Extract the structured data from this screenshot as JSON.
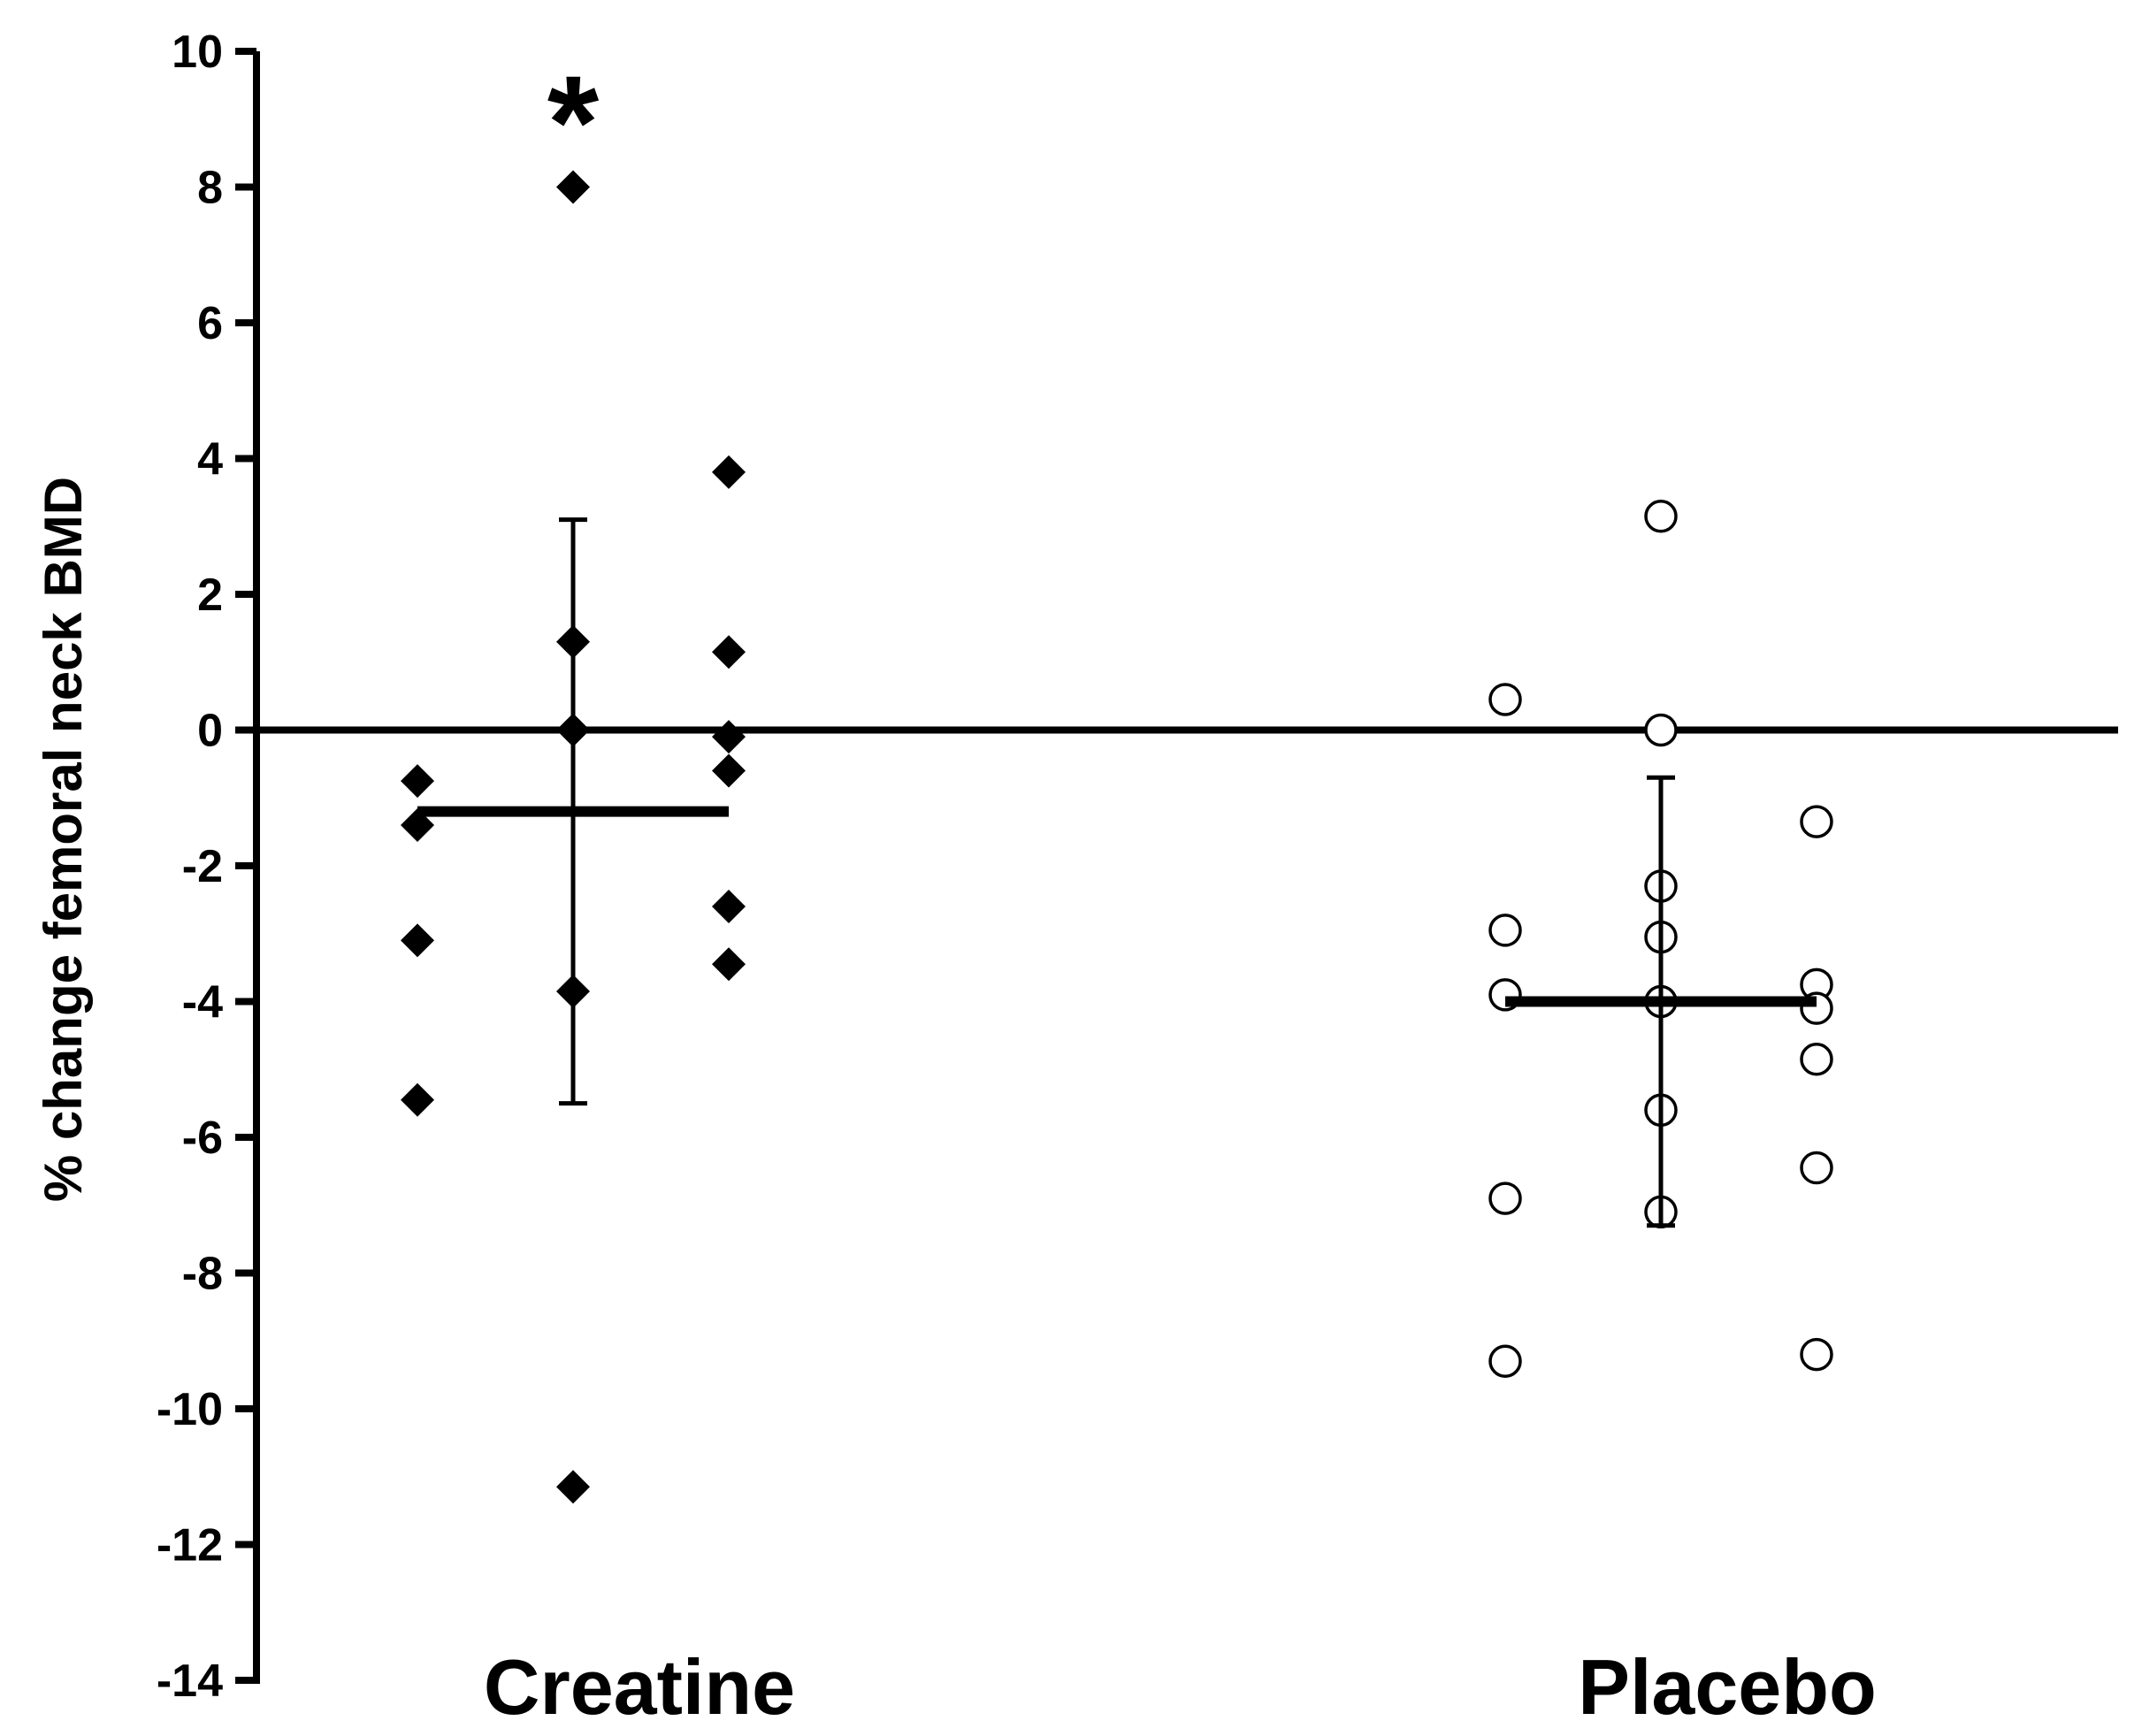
{
  "chart_data": {
    "type": "scatter",
    "title": "",
    "xlabel": "",
    "ylabel": "% change femoral neck BMD",
    "ylim": [
      -14,
      10
    ],
    "yticks": [
      10,
      8,
      6,
      4,
      2,
      0,
      -2,
      -4,
      -6,
      -8,
      -10,
      -12,
      -14
    ],
    "reference_line": 0,
    "categories": [
      "Creatine",
      "Placebo"
    ],
    "annotation": "*",
    "groups": [
      {
        "category": "Creatine",
        "marker": "filled-diamond",
        "points": [
          {
            "col": -1,
            "y": -0.75
          },
          {
            "col": -1,
            "y": -1.4
          },
          {
            "col": -1,
            "y": -3.1
          },
          {
            "col": -1,
            "y": -5.45
          },
          {
            "col": 0,
            "y": 8.0
          },
          {
            "col": 0,
            "y": 1.3
          },
          {
            "col": 0,
            "y": 0.0
          },
          {
            "col": 0,
            "y": -3.85
          },
          {
            "col": 0,
            "y": -11.15
          },
          {
            "col": 1,
            "y": 3.8
          },
          {
            "col": 1,
            "y": 1.15
          },
          {
            "col": 1,
            "y": -0.1
          },
          {
            "col": 1,
            "y": -0.6
          },
          {
            "col": 1,
            "y": -2.6
          },
          {
            "col": 1,
            "y": -3.45
          }
        ],
        "mean": -1.2,
        "error_high": 3.1,
        "error_low": -5.5
      },
      {
        "category": "Placebo",
        "marker": "open-circle",
        "points": [
          {
            "col": -1,
            "y": 0.45
          },
          {
            "col": -1,
            "y": -2.95
          },
          {
            "col": -1,
            "y": -3.9
          },
          {
            "col": -1,
            "y": -6.9
          },
          {
            "col": -1,
            "y": -9.3
          },
          {
            "col": 0,
            "y": 3.15
          },
          {
            "col": 0,
            "y": 0.0
          },
          {
            "col": 0,
            "y": -2.3
          },
          {
            "col": 0,
            "y": -3.05
          },
          {
            "col": 0,
            "y": -4.0
          },
          {
            "col": 0,
            "y": -5.6
          },
          {
            "col": 0,
            "y": -7.1
          },
          {
            "col": 1,
            "y": -1.35
          },
          {
            "col": 1,
            "y": -3.75
          },
          {
            "col": 1,
            "y": -4.1
          },
          {
            "col": 1,
            "y": -4.85
          },
          {
            "col": 1,
            "y": -6.45
          },
          {
            "col": 1,
            "y": -9.2
          }
        ],
        "mean": -4.0,
        "error_high": -0.7,
        "error_low": -7.3
      }
    ]
  }
}
